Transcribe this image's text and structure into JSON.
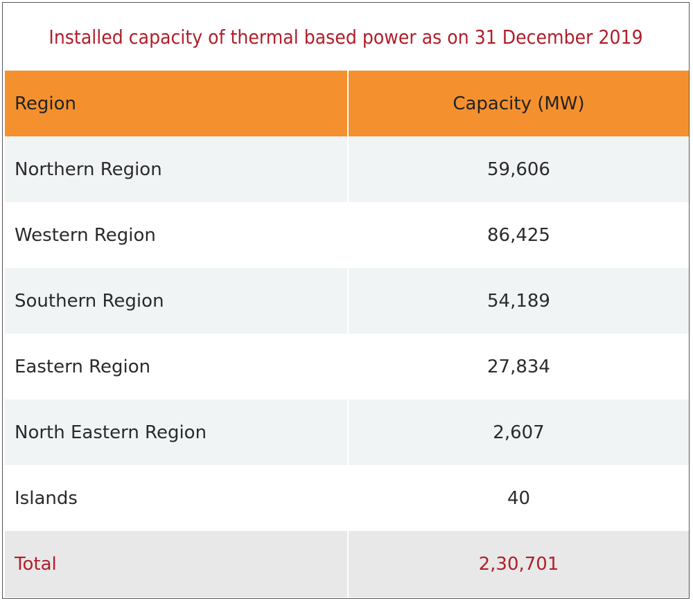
{
  "title": "Installed capacity of thermal based power as on 31 December 2019",
  "table": {
    "headers": [
      "Region",
      "Capacity (MW)"
    ],
    "rows": [
      {
        "region": "Northern Region",
        "capacity": "59,606"
      },
      {
        "region": "Western Region",
        "capacity": "86,425"
      },
      {
        "region": "Southern Region",
        "capacity": "54,189"
      },
      {
        "region": "Eastern Region",
        "capacity": "27,834"
      },
      {
        "region": "North Eastern Region",
        "capacity": "2,607"
      },
      {
        "region": "Islands",
        "capacity": "40"
      }
    ],
    "total": {
      "label": "Total",
      "capacity": "2,30,701"
    }
  },
  "colors": {
    "header_bg": "#f4912e",
    "title_text": "#b01e2a",
    "total_text": "#b01e2a",
    "row_stripe": "#f1f4f5",
    "total_bg": "#e8e8e8"
  }
}
